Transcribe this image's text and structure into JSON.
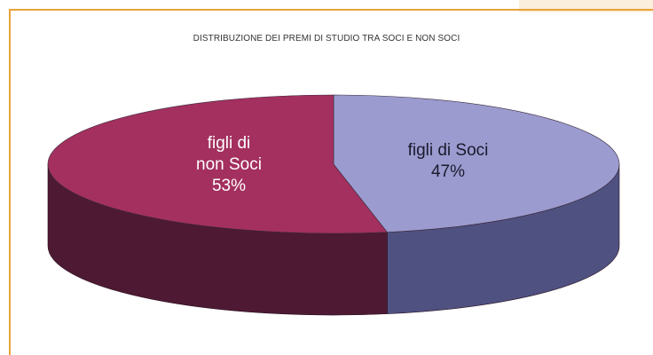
{
  "chart_data": {
    "type": "pie",
    "title": "DISTRIBUZIONE DEI PREMI DI STUDIO TRA SOCI E NON SOCI",
    "slices": [
      {
        "label_lines": [
          "figli di",
          "non Soci"
        ],
        "percent_label": "53%",
        "value": 53,
        "color": "#a3305f",
        "side_color": "#4e1a33"
      },
      {
        "label_lines": [
          "figli di Soci"
        ],
        "percent_label": "47%",
        "value": 47,
        "color": "#9b9bcf",
        "side_color": "#4f5180"
      }
    ]
  },
  "colors": {
    "frame": "#e8a23a",
    "corner_tab": "#fbeedd"
  }
}
